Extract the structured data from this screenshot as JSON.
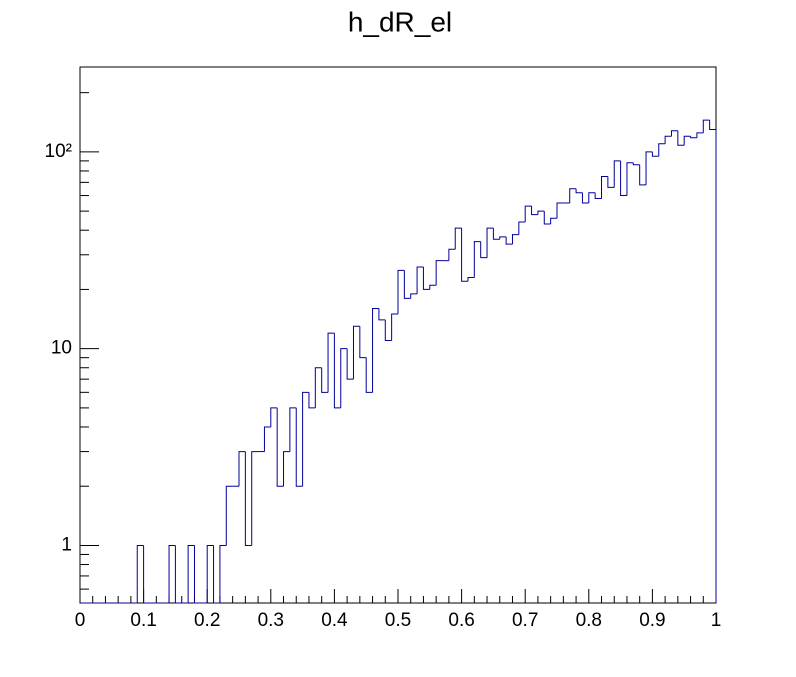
{
  "chart_data": {
    "type": "histogram",
    "title": "h_dR_el",
    "bins": [
      0,
      0.01,
      0.02,
      0.03,
      0.04,
      0.05,
      0.06,
      0.07,
      0.08,
      0.09,
      0.1,
      0.11,
      0.12,
      0.13,
      0.14,
      0.15,
      0.16,
      0.17,
      0.18,
      0.19,
      0.2,
      0.21,
      0.22,
      0.23,
      0.24,
      0.25,
      0.26,
      0.27,
      0.28,
      0.29,
      0.3,
      0.31,
      0.32,
      0.33,
      0.34,
      0.35,
      0.36,
      0.37,
      0.38,
      0.39,
      0.4,
      0.41,
      0.42,
      0.43,
      0.44,
      0.45,
      0.46,
      0.47,
      0.48,
      0.49,
      0.5,
      0.51,
      0.52,
      0.53,
      0.54,
      0.55,
      0.56,
      0.57,
      0.58,
      0.59,
      0.6,
      0.61,
      0.62,
      0.63,
      0.64,
      0.65,
      0.66,
      0.67,
      0.68,
      0.69,
      0.7,
      0.71,
      0.72,
      0.73,
      0.74,
      0.75,
      0.76,
      0.77,
      0.78,
      0.79,
      0.8,
      0.81,
      0.82,
      0.83,
      0.84,
      0.85,
      0.86,
      0.87,
      0.88,
      0.89,
      0.9,
      0.91,
      0.92,
      0.93,
      0.94,
      0.95,
      0.96,
      0.97,
      0.98,
      0.99,
      1
    ],
    "values": [
      0,
      0,
      0,
      0,
      0,
      0,
      0,
      0,
      0,
      1,
      0,
      0,
      0,
      0,
      1,
      0,
      0,
      1,
      0,
      0,
      1,
      0,
      1,
      2,
      2,
      3,
      1,
      3,
      3,
      4,
      5,
      2,
      3,
      5,
      2,
      6,
      5,
      8,
      6,
      12,
      5,
      10,
      7,
      13,
      9,
      6,
      16,
      14,
      11,
      15,
      25,
      18,
      19,
      26,
      20,
      21,
      28,
      28,
      32,
      41,
      22,
      23,
      35,
      29,
      41,
      36,
      37,
      34,
      38,
      44,
      53,
      48,
      50,
      43,
      46,
      55,
      55,
      65,
      62,
      55,
      62,
      58,
      75,
      66,
      90,
      60,
      88,
      86,
      68,
      100,
      95,
      110,
      120,
      128,
      108,
      120,
      118,
      125,
      145,
      130
    ],
    "color": "#000099",
    "xlim": [
      0,
      1
    ],
    "xticks": [
      0,
      0.1,
      0.2,
      0.3,
      0.4,
      0.5,
      0.6,
      0.7,
      0.8,
      0.9,
      1
    ],
    "ylim": [
      0.51,
      270
    ],
    "yticks": [
      1,
      10,
      {
        "value": 100,
        "label": "10²"
      }
    ],
    "log_y": true
  }
}
